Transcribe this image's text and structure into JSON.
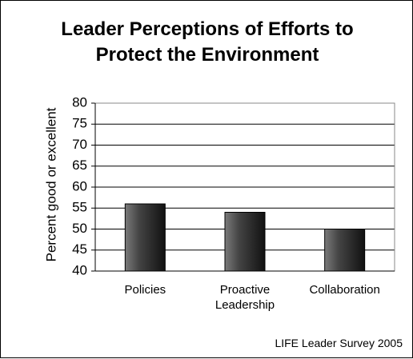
{
  "chart_data": {
    "type": "bar",
    "title": "Leader Perceptions of Efforts to Protect the Environment",
    "y_label": "Percent good or excellent",
    "categories": [
      "Policies",
      "Proactive Leadership",
      "Collaboration"
    ],
    "values": [
      56,
      54,
      50
    ],
    "color": "#333333",
    "ylim": [
      40,
      80
    ],
    "yticks": [
      40,
      45,
      50,
      55,
      60,
      65,
      70,
      75,
      80
    ],
    "grid": true,
    "source": "LIFE Leader Survey 2005"
  }
}
